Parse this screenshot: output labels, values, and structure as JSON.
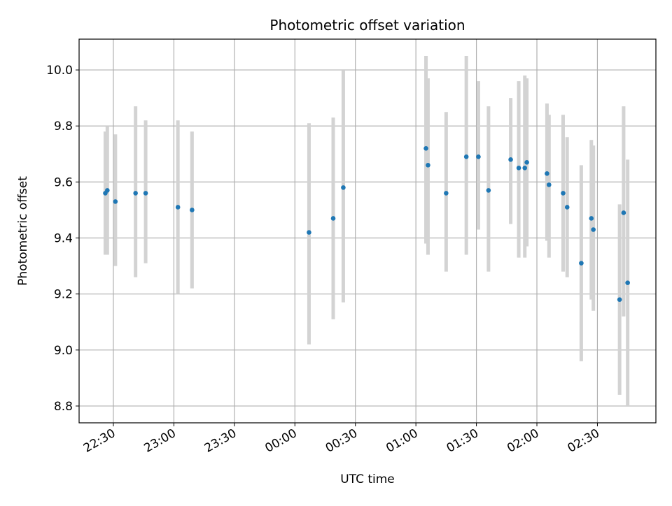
{
  "chart_data": {
    "type": "scatter",
    "title": "Photometric offset variation",
    "xlabel": "UTC time",
    "ylabel": "Photometric offset",
    "x_axis_type": "time",
    "xlim": [
      "22:13",
      "02:59"
    ],
    "ylim": [
      8.74,
      10.11
    ],
    "xticks": [
      "22:30",
      "23:00",
      "23:30",
      "00:00",
      "00:30",
      "01:00",
      "01:30",
      "02:00",
      "02:30"
    ],
    "yticks": [
      8.8,
      9.0,
      9.2,
      9.4,
      9.6,
      9.8,
      10.0
    ],
    "grid": true,
    "colors": {
      "point": "#1f77b4",
      "error_bar": "#d3d3d3",
      "grid": "#b0b0b0"
    },
    "points": [
      {
        "x": "22:26",
        "y": 9.56,
        "lo": 9.34,
        "hi": 9.78
      },
      {
        "x": "22:27",
        "y": 9.57,
        "lo": 9.34,
        "hi": 9.8
      },
      {
        "x": "22:31",
        "y": 9.53,
        "lo": 9.3,
        "hi": 9.77
      },
      {
        "x": "22:41",
        "y": 9.56,
        "lo": 9.26,
        "hi": 9.87
      },
      {
        "x": "22:46",
        "y": 9.56,
        "lo": 9.31,
        "hi": 9.82
      },
      {
        "x": "23:02",
        "y": 9.51,
        "lo": 9.2,
        "hi": 9.82
      },
      {
        "x": "23:09",
        "y": 9.5,
        "lo": 9.22,
        "hi": 9.78
      },
      {
        "x": "00:07",
        "y": 9.42,
        "lo": 9.02,
        "hi": 9.81
      },
      {
        "x": "00:19",
        "y": 9.47,
        "lo": 9.11,
        "hi": 9.83
      },
      {
        "x": "00:24",
        "y": 9.58,
        "lo": 9.17,
        "hi": 10.0
      },
      {
        "x": "01:05",
        "y": 9.72,
        "lo": 9.38,
        "hi": 10.05
      },
      {
        "x": "01:06",
        "y": 9.66,
        "lo": 9.34,
        "hi": 9.97
      },
      {
        "x": "01:15",
        "y": 9.56,
        "lo": 9.28,
        "hi": 9.85
      },
      {
        "x": "01:25",
        "y": 9.69,
        "lo": 9.34,
        "hi": 10.05
      },
      {
        "x": "01:31",
        "y": 9.69,
        "lo": 9.43,
        "hi": 9.96
      },
      {
        "x": "01:36",
        "y": 9.57,
        "lo": 9.28,
        "hi": 9.87
      },
      {
        "x": "01:47",
        "y": 9.68,
        "lo": 9.45,
        "hi": 9.9
      },
      {
        "x": "01:51",
        "y": 9.65,
        "lo": 9.33,
        "hi": 9.96
      },
      {
        "x": "01:54",
        "y": 9.65,
        "lo": 9.33,
        "hi": 9.98
      },
      {
        "x": "01:55",
        "y": 9.67,
        "lo": 9.37,
        "hi": 9.97
      },
      {
        "x": "02:05",
        "y": 9.63,
        "lo": 9.39,
        "hi": 9.88
      },
      {
        "x": "02:06",
        "y": 9.59,
        "lo": 9.33,
        "hi": 9.84
      },
      {
        "x": "02:13",
        "y": 9.56,
        "lo": 9.28,
        "hi": 9.84
      },
      {
        "x": "02:15",
        "y": 9.51,
        "lo": 9.26,
        "hi": 9.76
      },
      {
        "x": "02:22",
        "y": 9.31,
        "lo": 8.96,
        "hi": 9.66
      },
      {
        "x": "02:27",
        "y": 9.47,
        "lo": 9.18,
        "hi": 9.75
      },
      {
        "x": "02:28",
        "y": 9.43,
        "lo": 9.14,
        "hi": 9.73
      },
      {
        "x": "02:41",
        "y": 9.18,
        "lo": 8.84,
        "hi": 9.52
      },
      {
        "x": "02:43",
        "y": 9.49,
        "lo": 9.12,
        "hi": 9.87
      },
      {
        "x": "02:45",
        "y": 9.24,
        "lo": 8.8,
        "hi": 9.68
      }
    ]
  }
}
